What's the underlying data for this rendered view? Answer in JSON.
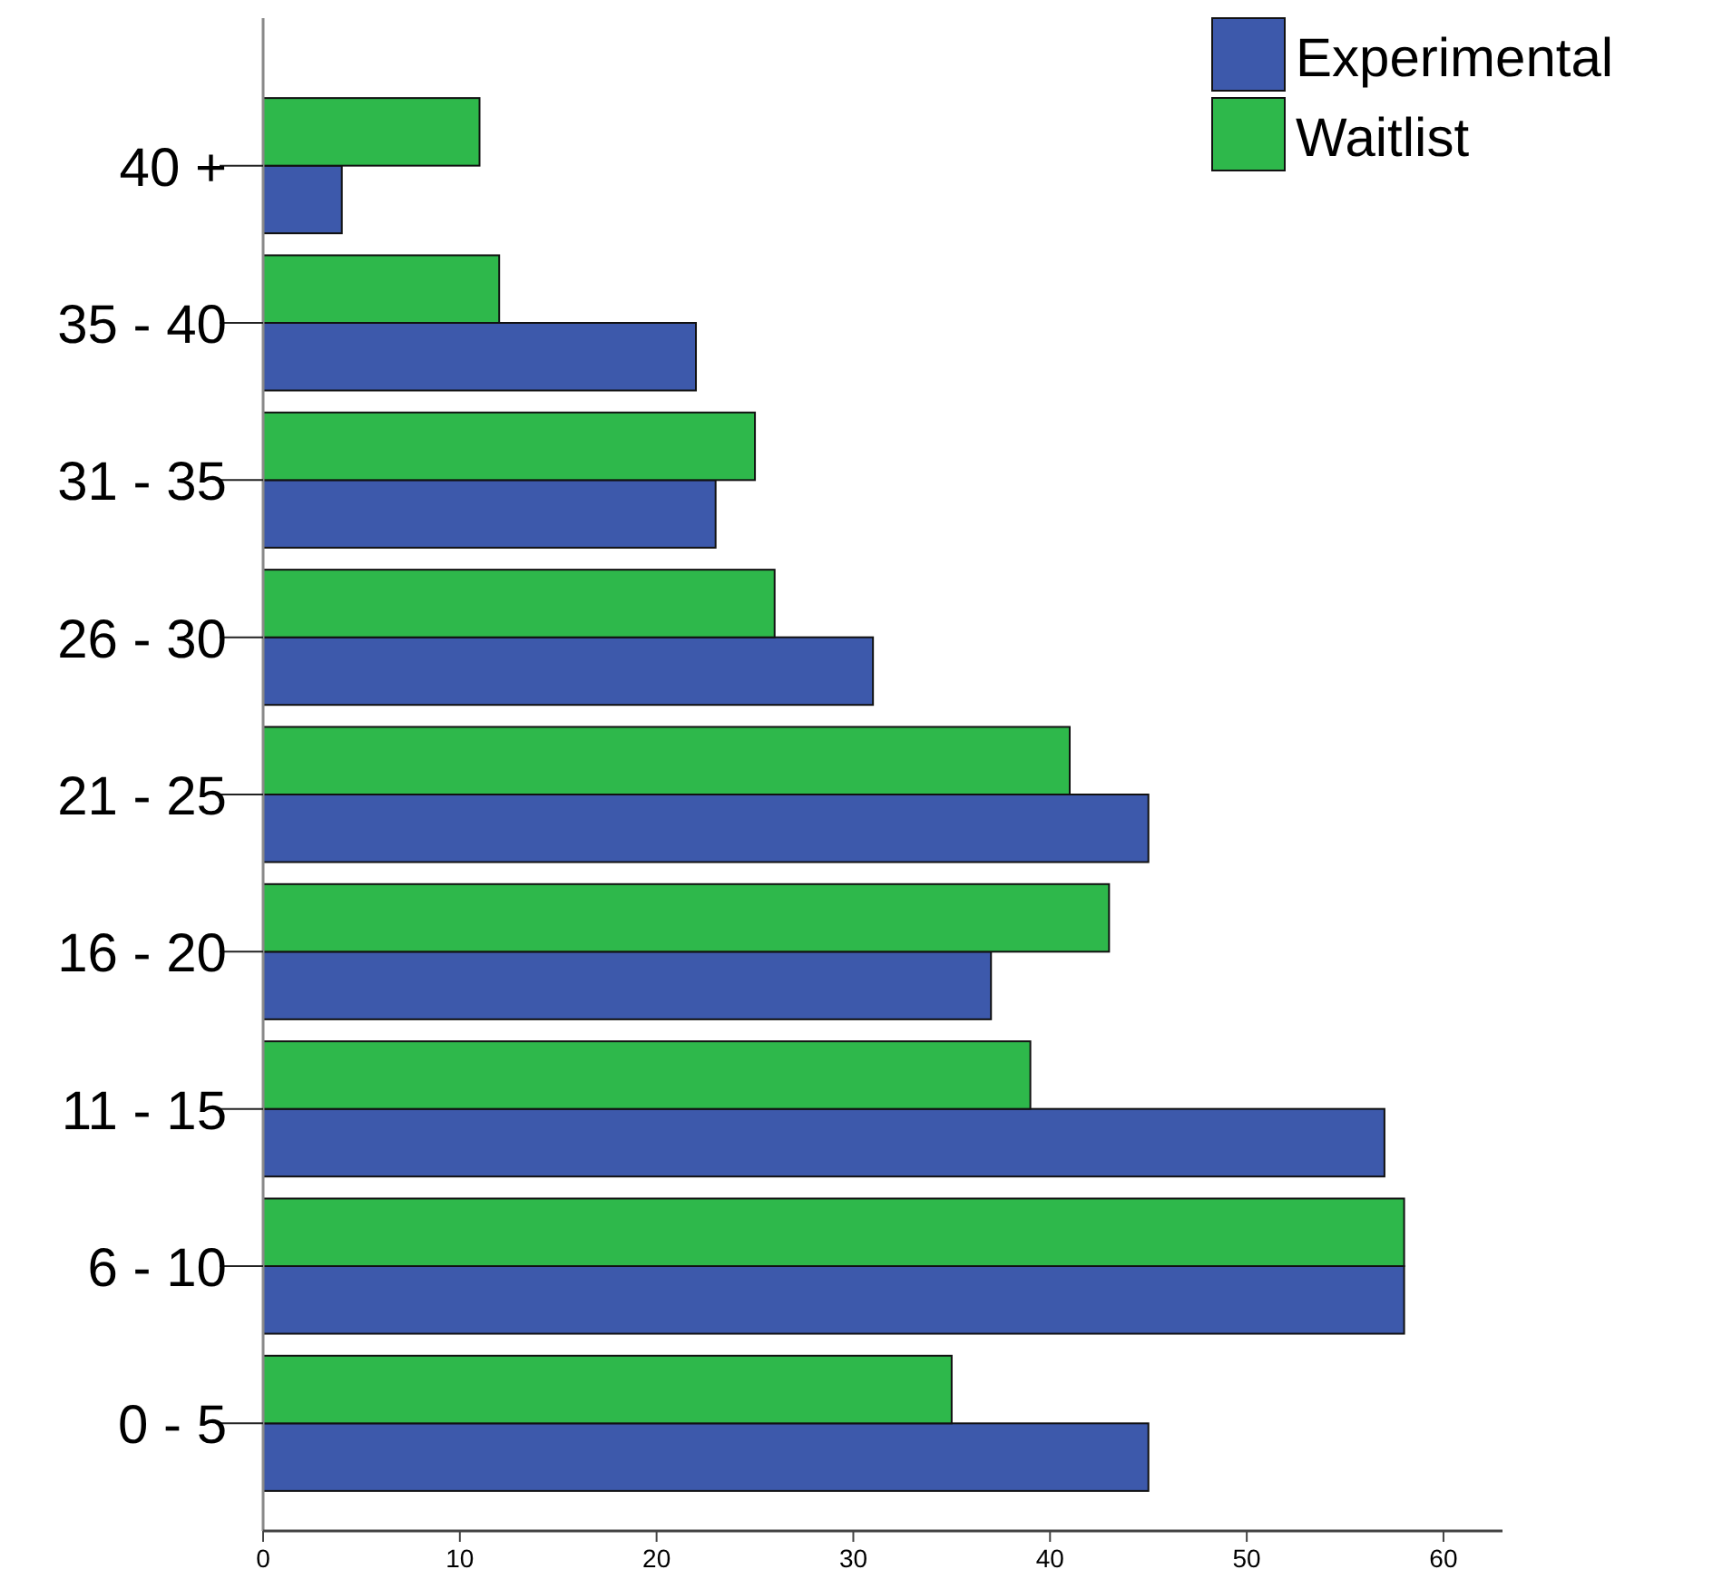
{
  "chart_data": {
    "type": "bar",
    "orientation": "horizontal",
    "categories": [
      "40 +",
      "35 - 40",
      "31 - 35",
      "26 - 30",
      "21 - 25",
      "16 - 20",
      "11 - 15",
      "6 - 10",
      "0 - 5"
    ],
    "series": [
      {
        "name": "Experimental",
        "color": "#3d59ab",
        "values": [
          4,
          22,
          23,
          31,
          45,
          37,
          57,
          58,
          45
        ]
      },
      {
        "name": "Waitlist",
        "color": "#2eb84b",
        "values": [
          11,
          12,
          25,
          26,
          41,
          43,
          39,
          58,
          35
        ]
      }
    ],
    "xlim": [
      0,
      63
    ],
    "xticks": [
      0,
      10,
      20,
      30,
      40,
      50,
      60
    ],
    "grid": false,
    "legend": "top right"
  }
}
